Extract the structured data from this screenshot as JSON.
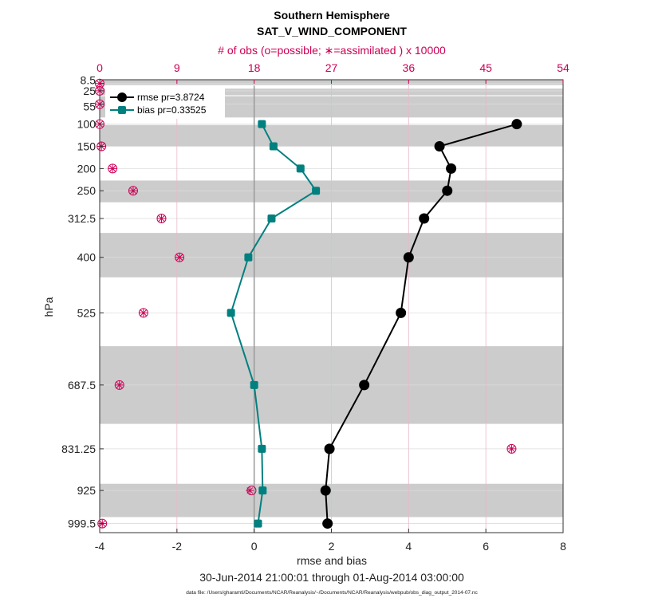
{
  "chart_data": {
    "type": "line",
    "title": "Southern Hemisphere",
    "subtitle": "SAT_V_WIND_COMPONENT",
    "top_axis_label": "# of obs (o=possible; ∗=assimilated ) x 10000",
    "top_ticks": [
      "0",
      "9",
      "18",
      "27",
      "36",
      "45",
      "54"
    ],
    "top_range": [
      0,
      54
    ],
    "xlabel": "rmse and bias",
    "ylabel": "hPa",
    "date_range": "30-Jun-2014 21:00:01 through 01-Aug-2014 03:00:00",
    "data_file": "data file: /Users/gharamti/Documents/NCAR/Reanalysis/~/Documents/NCAR/Reanalysis/webpub/obs_diag_output_2014-07.nc",
    "xlim": [
      -4,
      8
    ],
    "x_ticks": [
      "-4",
      "-2",
      "0",
      "2",
      "4",
      "6",
      "8"
    ],
    "y_tick_labels": [
      "8.5",
      "25",
      "55",
      "100",
      "150",
      "200",
      "250",
      "312.5",
      "400",
      "525",
      "687.5",
      "831.25",
      "925",
      "999.5"
    ],
    "levels": [
      8.5,
      25,
      55,
      100,
      150,
      200,
      250,
      312.5,
      400,
      525,
      687.5,
      831.25,
      925,
      999.5
    ],
    "shaded_bands": [
      [
        0,
        12
      ],
      [
        20,
        35
      ],
      [
        37,
        85
      ],
      [
        102,
        150
      ],
      [
        227,
        276
      ],
      [
        345,
        445
      ],
      [
        600,
        775
      ],
      [
        910,
        985
      ]
    ],
    "series": [
      {
        "name": "rmse pr=3.8724",
        "color": "#000000",
        "levels": [
          100,
          150,
          200,
          250,
          312.5,
          400,
          525,
          687.5,
          831.25,
          925,
          999.5
        ],
        "values": [
          6.8,
          4.8,
          5.1,
          5.0,
          4.4,
          4.0,
          3.8,
          2.85,
          1.95,
          1.85,
          1.9
        ]
      },
      {
        "name": "bias pr=0.33525",
        "color": "#00807f",
        "levels": [
          100,
          150,
          200,
          250,
          312.5,
          400,
          525,
          687.5,
          831.25,
          925,
          999.5
        ],
        "values": [
          0.2,
          0.5,
          1.2,
          1.6,
          0.45,
          -0.15,
          -0.6,
          0.0,
          0.2,
          0.22,
          0.1
        ]
      }
    ],
    "obs_possible": {
      "levels": [
        8.5,
        25,
        55,
        100,
        150,
        200,
        250,
        312.5,
        400,
        525,
        687.5,
        831.25,
        925,
        999.5
      ],
      "values": [
        0.0,
        0.0,
        0.0,
        0.0,
        0.2,
        1.5,
        3.9,
        7.2,
        9.3,
        5.1,
        2.3,
        48.0,
        17.7,
        0.3
      ]
    },
    "obs_assimilated": {
      "levels": [
        8.5,
        25,
        55,
        100,
        150,
        200,
        250,
        312.5,
        400,
        525,
        687.5,
        831.25,
        925,
        999.5
      ],
      "values": [
        0.0,
        0.0,
        0.0,
        0.0,
        0.2,
        1.5,
        3.9,
        7.2,
        9.3,
        5.1,
        2.3,
        48.0,
        17.5,
        0.3
      ]
    },
    "colors": {
      "obs": "#cc0055",
      "band": "#cccccc",
      "zero_line": "#999999"
    }
  }
}
